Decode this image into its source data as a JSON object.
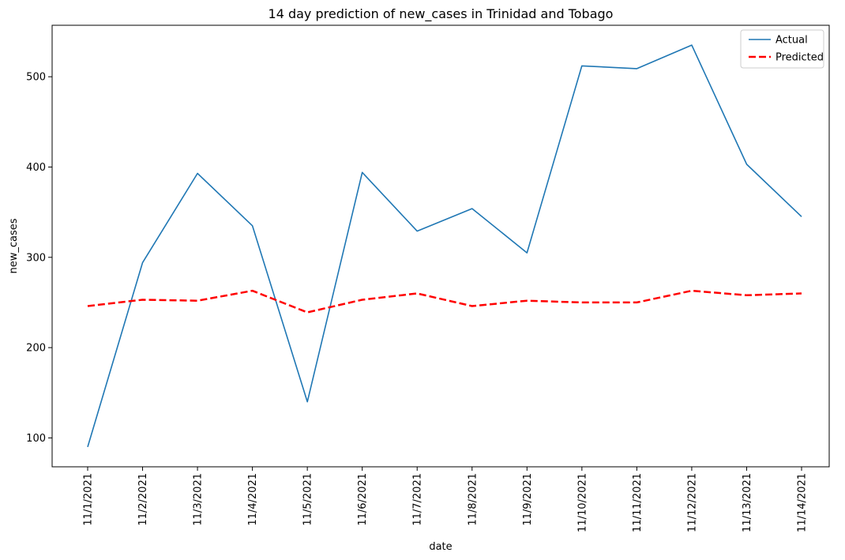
{
  "chart_data": {
    "type": "line",
    "title": "14 day prediction of new_cases in Trinidad and Tobago",
    "xlabel": "date",
    "ylabel": "new_cases",
    "categories": [
      "11/1/2021",
      "11/2/2021",
      "11/3/2021",
      "11/4/2021",
      "11/5/2021",
      "11/6/2021",
      "11/7/2021",
      "11/8/2021",
      "11/9/2021",
      "11/10/2021",
      "11/11/2021",
      "11/12/2021",
      "11/13/2021",
      "11/14/2021"
    ],
    "y_ticks": [
      100,
      200,
      300,
      400,
      500
    ],
    "ylim": [
      68,
      557
    ],
    "grid": false,
    "legend_position": "top-right",
    "series": [
      {
        "name": "Actual",
        "color": "#1f77b4",
        "style": "solid",
        "values": [
          90,
          294,
          393,
          335,
          140,
          394,
          329,
          354,
          305,
          512,
          509,
          535,
          403,
          345
        ]
      },
      {
        "name": "Predicted",
        "color": "#ff0000",
        "style": "dashed",
        "values": [
          246,
          253,
          252,
          263,
          239,
          253,
          260,
          246,
          252,
          250,
          250,
          263,
          258,
          260
        ]
      }
    ]
  }
}
